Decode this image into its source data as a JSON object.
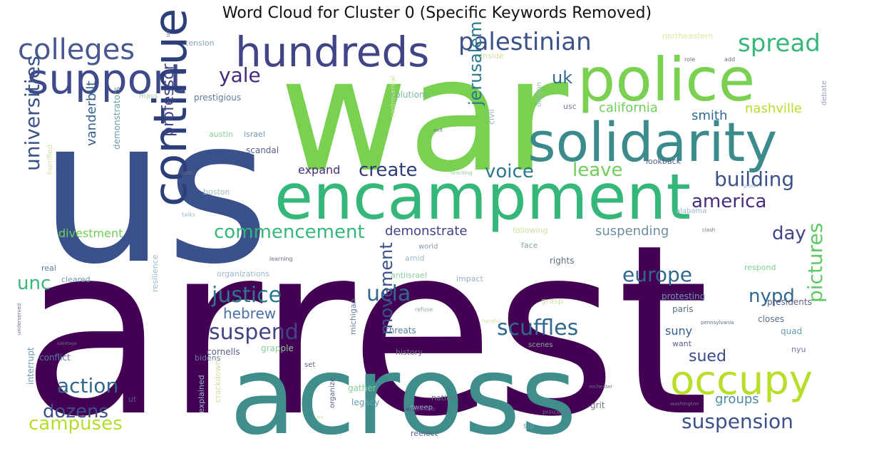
{
  "chart_data": {
    "type": "wordcloud",
    "title": "Word Cloud for Cluster 0 (Specific Keywords Removed)",
    "words": [
      {
        "text": "arrest",
        "color": "#440154"
      },
      {
        "text": "us",
        "color": "#3b518b"
      },
      {
        "text": "war",
        "color": "#7ad151"
      },
      {
        "text": "across",
        "color": "#3f8e8c"
      },
      {
        "text": "encampment",
        "color": "#35b779"
      },
      {
        "text": "police",
        "color": "#7ad151"
      },
      {
        "text": "solidarity",
        "color": "#3b8a8c"
      },
      {
        "text": "support",
        "color": "#3e4a89"
      },
      {
        "text": "hundreds",
        "color": "#414487"
      },
      {
        "text": "continue",
        "color": "#2c3f7a"
      },
      {
        "text": "colleges",
        "color": "#4a5891"
      },
      {
        "text": "occupy",
        "color": "#b8de29"
      },
      {
        "text": "palestinian",
        "color": "#3b5189"
      },
      {
        "text": "spread",
        "color": "#35b779"
      },
      {
        "text": "yale",
        "color": "#472a7a"
      },
      {
        "text": "uk",
        "color": "#31688e"
      },
      {
        "text": "universities",
        "color": "#3b5189"
      },
      {
        "text": "professor",
        "color": "#414487"
      },
      {
        "text": "vanderbilt",
        "color": "#355f8d"
      },
      {
        "text": "demonstrators",
        "color": "#6b9ba8"
      },
      {
        "text": "jerusalem",
        "color": "#2a788e"
      },
      {
        "text": "california",
        "color": "#6ece58"
      },
      {
        "text": "nashville",
        "color": "#b5de2b"
      },
      {
        "text": "smith",
        "color": "#31688e"
      },
      {
        "text": "create",
        "color": "#2c3f7a"
      },
      {
        "text": "voice",
        "color": "#2a788e"
      },
      {
        "text": "leave",
        "color": "#6ece58"
      },
      {
        "text": "building",
        "color": "#3b5189"
      },
      {
        "text": "america",
        "color": "#472d7b"
      },
      {
        "text": "commencement",
        "color": "#35b779"
      },
      {
        "text": "demonstrate",
        "color": "#414487"
      },
      {
        "text": "suspending",
        "color": "#6b8e9e"
      },
      {
        "text": "day",
        "color": "#414487"
      },
      {
        "text": "divestment",
        "color": "#6ece58"
      },
      {
        "text": "unc",
        "color": "#35b779"
      },
      {
        "text": "justice",
        "color": "#2a788e"
      },
      {
        "text": "hebrew",
        "color": "#4a6fa5"
      },
      {
        "text": "suspend",
        "color": "#414487"
      },
      {
        "text": "ucla",
        "color": "#31688e"
      },
      {
        "text": "movement",
        "color": "#3b5189"
      },
      {
        "text": "scuffles",
        "color": "#31688e"
      },
      {
        "text": "europe",
        "color": "#31688e"
      },
      {
        "text": "nypd",
        "color": "#31688e"
      },
      {
        "text": "pictures",
        "color": "#5ec962"
      },
      {
        "text": "suny",
        "color": "#355f8d"
      },
      {
        "text": "sued",
        "color": "#3e4a89"
      },
      {
        "text": "action",
        "color": "#31688e"
      },
      {
        "text": "dozens",
        "color": "#3b5189"
      },
      {
        "text": "campuses",
        "color": "#b5de2b"
      },
      {
        "text": "suspension",
        "color": "#3b5189"
      },
      {
        "text": "groups",
        "color": "#4e8aa0"
      },
      {
        "text": "expand",
        "color": "#472d7b"
      },
      {
        "text": "tension",
        "color": "#8aa0b8"
      },
      {
        "text": "northeastern",
        "color": "#e0e89a"
      },
      {
        "text": "prestigious",
        "color": "#5a7ba0"
      },
      {
        "text": "mass",
        "color": "#a9cfa0"
      },
      {
        "text": "solutions",
        "color": "#7ab79a"
      },
      {
        "text": "inside",
        "color": "#cde0a0"
      },
      {
        "text": "oregon",
        "color": "#9ab7c8"
      },
      {
        "text": "usc",
        "color": "#7a7aa0"
      },
      {
        "text": "debate",
        "color": "#9aa0b8"
      },
      {
        "text": "austin",
        "color": "#8acd9a"
      },
      {
        "text": "israel",
        "color": "#6a9bb0"
      },
      {
        "text": "scandal",
        "color": "#5a5f8a"
      },
      {
        "text": "civil",
        "color": "#9ab0c0"
      },
      {
        "text": "lookback",
        "color": "#5a5f8a"
      },
      {
        "text": "boston",
        "color": "#9ab7c8"
      },
      {
        "text": "alabama",
        "color": "#9ab7c8"
      },
      {
        "text": "following",
        "color": "#cde0a0"
      },
      {
        "text": "face",
        "color": "#8aaa9a"
      },
      {
        "text": "world",
        "color": "#8a9ab0"
      },
      {
        "text": "amid",
        "color": "#9ab7c8"
      },
      {
        "text": "rights",
        "color": "#5a7080"
      },
      {
        "text": "respond",
        "color": "#7acd9a"
      },
      {
        "text": "organizations",
        "color": "#9ab7c8"
      },
      {
        "text": "cleared",
        "color": "#6a9bb0"
      },
      {
        "text": "real",
        "color": "#5a7ba0"
      },
      {
        "text": "antiisrael",
        "color": "#8acd9a"
      },
      {
        "text": "impact",
        "color": "#9ab0c0"
      },
      {
        "text": "resilience",
        "color": "#9ab7c8"
      },
      {
        "text": "protesting",
        "color": "#6a9bb0"
      },
      {
        "text": "presidents",
        "color": "#5a5f8a"
      },
      {
        "text": "paris",
        "color": "#5a7080"
      },
      {
        "text": "grasp",
        "color": "#cde0a0"
      },
      {
        "text": "closes",
        "color": "#5a7080"
      },
      {
        "text": "quad",
        "color": "#6a9bb0"
      },
      {
        "text": "michigan",
        "color": "#6a7ba0"
      },
      {
        "text": "threats",
        "color": "#5a7ba0"
      },
      {
        "text": "grapple",
        "color": "#8acd9a"
      },
      {
        "text": "cornells",
        "color": "#5a5f8a"
      },
      {
        "text": "history",
        "color": "#6a7080"
      },
      {
        "text": "scenes",
        "color": "#8aaa9a"
      },
      {
        "text": "want",
        "color": "#5a5f8a"
      },
      {
        "text": "nyu",
        "color": "#6a7ba0"
      },
      {
        "text": "interrupt",
        "color": "#6a9bb0"
      },
      {
        "text": "conflict",
        "color": "#5a7ba0"
      },
      {
        "text": "bidens",
        "color": "#6a7ba0"
      },
      {
        "text": "set",
        "color": "#5a5f8a"
      },
      {
        "text": "gather",
        "color": "#8acd9a"
      },
      {
        "text": "legacy",
        "color": "#6a9bb0"
      },
      {
        "text": "nation",
        "color": "#6a7080"
      },
      {
        "text": "sweep",
        "color": "#9ab7c8"
      },
      {
        "text": "explained",
        "color": "#9ab7c8"
      },
      {
        "text": "crackdown",
        "color": "#cde0a0"
      },
      {
        "text": "organize",
        "color": "#5a5f8a"
      },
      {
        "text": "reelect",
        "color": "#5a5f8a"
      },
      {
        "text": "sjp",
        "color": "#6a9bb0"
      },
      {
        "text": "grit",
        "color": "#6a7080"
      },
      {
        "text": "ut",
        "color": "#5a5f8a"
      },
      {
        "text": "gods",
        "color": "#6a7080"
      },
      {
        "text": "horrified",
        "color": "#cde0a0"
      },
      {
        "text": "role",
        "color": "#6a7080"
      },
      {
        "text": "add",
        "color": "#6a7080"
      },
      {
        "text": "uo",
        "color": "#6a7080"
      },
      {
        "text": "talks",
        "color": "#9ab7c8"
      },
      {
        "text": "green",
        "color": "#9ab7c8"
      },
      {
        "text": "teaching",
        "color": "#8acd9a"
      },
      {
        "text": "clash",
        "color": "#6a7080"
      },
      {
        "text": "learning",
        "color": "#6a7080"
      },
      {
        "text": "refuse",
        "color": "#8aaa9a"
      },
      {
        "text": "pennsylvania",
        "color": "#5a7080"
      },
      {
        "text": "handful",
        "color": "#cde0a0"
      },
      {
        "text": "rochester",
        "color": "#6a7080"
      },
      {
        "text": "washington",
        "color": "#6a7080"
      },
      {
        "text": "princeton",
        "color": "#6a7080"
      },
      {
        "text": "willamette",
        "color": "#6a3a7a"
      },
      {
        "text": "six",
        "color": "#cde0a0"
      },
      {
        "text": "underserved",
        "color": "#6a7080"
      },
      {
        "text": "sabotage",
        "color": "#6a7080"
      },
      {
        "text": "controversial",
        "color": "#cde0a0"
      },
      {
        "text": "exit",
        "color": "#6a7080"
      }
    ]
  }
}
